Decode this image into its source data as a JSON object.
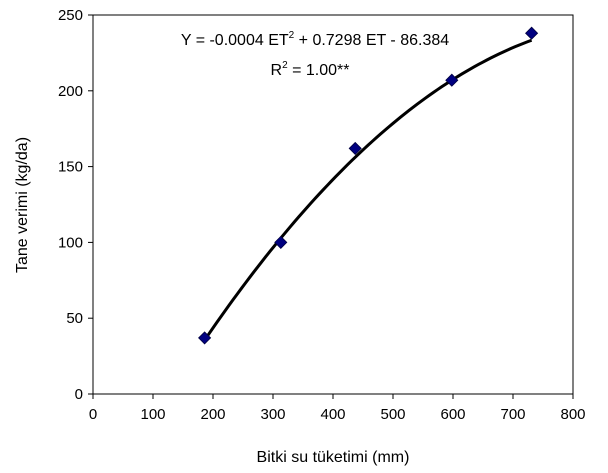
{
  "chart_data": {
    "type": "scatter",
    "xlabel": "Bitki su tüketimi (mm)",
    "ylabel": "Tane verimi (kg/da)",
    "xlim": [
      0,
      800
    ],
    "ylim": [
      0,
      250
    ],
    "xticks": [
      "0",
      "100",
      "200",
      "300",
      "400",
      "500",
      "600",
      "700",
      "800"
    ],
    "yticks": [
      "0",
      "50",
      "100",
      "150",
      "200",
      "250"
    ],
    "grid": false,
    "legend": "none",
    "series": [
      {
        "x": [
          186,
          313,
          437,
          598,
          731
        ],
        "y": [
          37,
          100,
          162,
          207,
          238
        ],
        "marker": "diamond",
        "color": "#000080"
      }
    ],
    "trendline": {
      "type": "polynomial",
      "order": 2,
      "coefficients": {
        "a": -0.0004,
        "b": 0.7298,
        "c": -86.384
      },
      "x_range": [
        186,
        731
      ],
      "color": "#000000"
    },
    "annotations": {
      "equation": {
        "p1": "Y = -0.0004 ET",
        "sup1": "2",
        "p2": " + 0.7298 ET - 86.384"
      },
      "r2": {
        "p1": "R",
        "sup1": "2",
        "p2": " = 1.00**"
      }
    }
  }
}
